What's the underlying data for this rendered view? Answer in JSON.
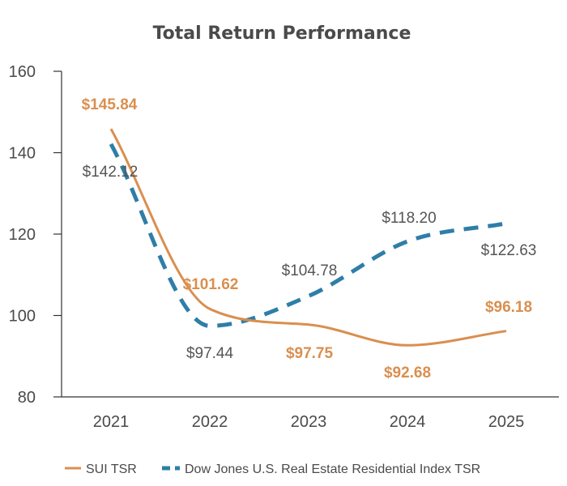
{
  "chart_data": {
    "type": "line",
    "title": "Total Return Performance",
    "xlabel": "",
    "ylabel": "",
    "categories": [
      "2021",
      "2022",
      "2023",
      "2024",
      "2025"
    ],
    "yticks": [
      "80",
      "100",
      "120",
      "140",
      "160"
    ],
    "ylim": [
      80,
      160
    ],
    "grid": false,
    "legend_position": "bottom",
    "series": [
      {
        "name": "SUI TSR",
        "values": [
          145.84,
          101.62,
          97.75,
          92.68,
          96.18
        ],
        "labels": [
          "$145.84",
          "$101.62",
          "$97.75",
          "$92.68",
          "$96.18"
        ],
        "color": "#d98f4f",
        "style": "solid"
      },
      {
        "name": "Dow Jones U.S. Real Estate Residential Index TSR",
        "values": [
          142.12,
          97.44,
          104.78,
          118.2,
          122.63
        ],
        "labels": [
          "$142.12",
          "$97.44",
          "$104.78",
          "$118.20",
          "$122.63"
        ],
        "color": "#2f7ea8",
        "style": "dashed"
      }
    ]
  }
}
